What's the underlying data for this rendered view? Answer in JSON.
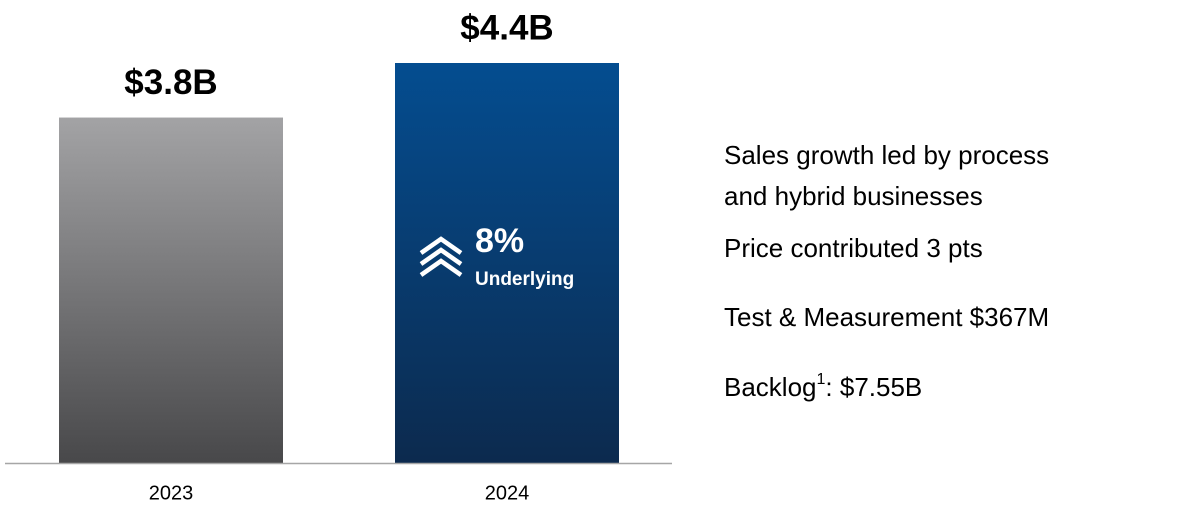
{
  "chart_data": {
    "type": "bar",
    "categories": [
      "2023",
      "2024"
    ],
    "values": [
      3.8,
      4.4
    ],
    "value_labels": [
      "$3.8B",
      "$4.4B"
    ],
    "annotation": {
      "value": "8%",
      "label": "Underlying"
    },
    "notes": [
      [
        "Sales growth led by process",
        "and hybrid businesses"
      ],
      [
        "Price contributed 3 pts"
      ],
      [
        "Test & Measurement $367M"
      ],
      [
        "Backlog",
        "1",
        ": $7.55B"
      ]
    ]
  }
}
